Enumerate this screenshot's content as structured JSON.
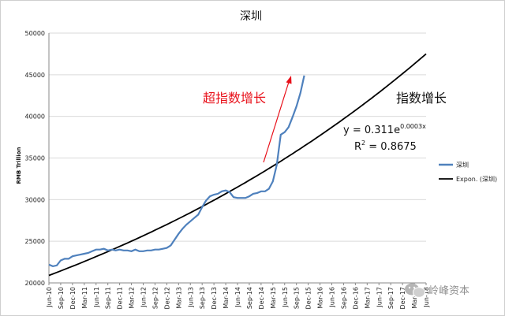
{
  "chart_data": {
    "type": "line",
    "title": "深圳",
    "ylabel": "RMB Trillion",
    "xlabel": "",
    "ylim": [
      20000,
      50000
    ],
    "yticks": [
      20000,
      25000,
      30000,
      35000,
      40000,
      45000,
      50000
    ],
    "ytick_labels": [
      "20000",
      "25000",
      "30000",
      "35000",
      "40000",
      "45000",
      "50000"
    ],
    "grid": "horizontal",
    "legend": "right",
    "x_tick_labels": [
      "Jun-10",
      "Sep-10",
      "Dec-10",
      "Mar-11",
      "Jun-11",
      "Sep-11",
      "Dec-11",
      "Mar-12",
      "Jun-12",
      "Sep-12",
      "Dec-12",
      "Mar-13",
      "Jun-13",
      "Sep-13",
      "Dec-13",
      "Mar-14",
      "Jun-14",
      "Sep-14",
      "Dec-14",
      "Mar-15",
      "Jun-15",
      "Sep-15",
      "Dec-15",
      "Mar-16",
      "Jun-16",
      "Sep-16",
      "Dec-16",
      "Mar-17",
      "Jun-17",
      "Sep-17",
      "Dec-17",
      "Mar-18",
      "Jun-18"
    ],
    "x_month_span": [
      0,
      96
    ],
    "series": [
      {
        "name": "深圳",
        "kind": "data",
        "color": "#4f81bd",
        "x_months": [
          0,
          1,
          2,
          3,
          4,
          5,
          6,
          7,
          8,
          9,
          10,
          11,
          12,
          13,
          14,
          15,
          16,
          17,
          18,
          19,
          20,
          21,
          22,
          23,
          24,
          25,
          26,
          27,
          28,
          29,
          30,
          31,
          32,
          33,
          34,
          35,
          36,
          37,
          38,
          39,
          40,
          41,
          42,
          43,
          44,
          45,
          46,
          47,
          48,
          49,
          50,
          51,
          52,
          53,
          54,
          55,
          56,
          57,
          58,
          59,
          60,
          61,
          62,
          63,
          64,
          65,
          66,
          67
        ],
        "values": [
          22200,
          22000,
          22100,
          22700,
          22900,
          22900,
          23200,
          23300,
          23400,
          23500,
          23600,
          23800,
          24000,
          24000,
          24100,
          23900,
          24000,
          23900,
          24000,
          23900,
          23900,
          23800,
          24000,
          23800,
          23800,
          23900,
          23900,
          24000,
          24000,
          24100,
          24200,
          24500,
          25200,
          25900,
          26500,
          27000,
          27400,
          27800,
          28200,
          29100,
          29900,
          30400,
          30600,
          30700,
          31000,
          31100,
          30900,
          30300,
          30200,
          30200,
          30200,
          30400,
          30700,
          30800,
          31000,
          31000,
          31300,
          32200,
          34200,
          37800,
          38100,
          38700,
          39900,
          41200,
          42800,
          44900,
          null,
          null
        ]
      },
      {
        "name": "Expon. (深圳)",
        "kind": "trendline",
        "color": "#000000",
        "x_months_range": [
          0,
          96
        ],
        "start_value": 20900,
        "end_value": 47500
      }
    ],
    "annotations": {
      "surge_label": "超指数增长",
      "trend_label": "指数增长",
      "equation_base": "y = 0.311e",
      "equation_exp": "0.0003x",
      "r2_base": "R",
      "r2_sup": "2",
      "r2_value": " = 0.8675"
    }
  },
  "watermark": {
    "text": "岭峰资本",
    "icon": "wechat-icon"
  },
  "colors": {
    "series": "#4f81bd",
    "trend": "#000000",
    "arrow": "#e8101a",
    "grid": "#d9d9d9"
  }
}
